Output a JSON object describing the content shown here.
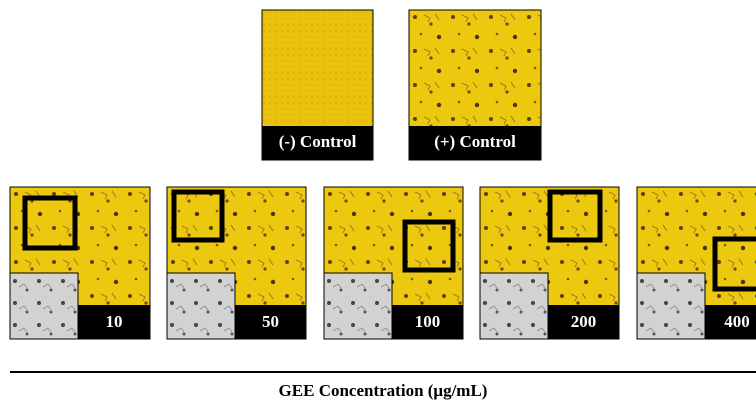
{
  "controls": [
    {
      "label": "(-) Control"
    },
    {
      "label": "(+) Control"
    }
  ],
  "panels": [
    {
      "label": "10"
    },
    {
      "label": "50"
    },
    {
      "label": "100"
    },
    {
      "label": "200"
    },
    {
      "label": "400"
    }
  ],
  "axis_label": "GEE Concentration (μg/mL)"
}
